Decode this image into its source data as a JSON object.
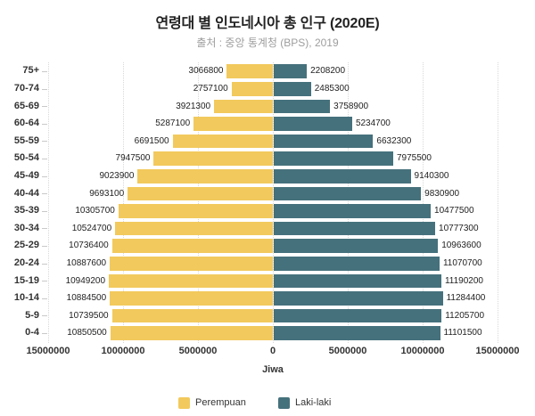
{
  "title": "연령대 별 인도네시아 총 인구 (2020E)",
  "subtitle": "출처 : 중앙 통계청 (BPS), 2019",
  "colors": {
    "perempuan": "#F2C95C",
    "laki_laki": "#45717C",
    "grid": "#d9d9d9",
    "text": "#333333"
  },
  "chart_data": {
    "type": "bar",
    "variant": "population-pyramid-horizontal",
    "title": "연령대 별 인도네시아 총 인구 (2020E)",
    "subtitle": "출처 : 중앙 통계청 (BPS), 2019",
    "xlabel": "Jiwa",
    "categories": [
      "75+",
      "70-74",
      "65-69",
      "60-64",
      "55-59",
      "50-54",
      "45-49",
      "40-44",
      "35-39",
      "30-34",
      "25-29",
      "20-24",
      "15-19",
      "10-14",
      "5-9",
      "0-4"
    ],
    "series": [
      {
        "name": "Perempuan",
        "side": "left",
        "color": "#F2C95C",
        "values": [
          3066800,
          2757100,
          3921300,
          5287100,
          6691500,
          7947500,
          9023900,
          9693100,
          10305700,
          10524700,
          10736400,
          10887600,
          10949200,
          10884500,
          10739500,
          10850500
        ]
      },
      {
        "name": "Laki-laki",
        "side": "right",
        "color": "#45717C",
        "values": [
          2208200,
          2485300,
          3758900,
          5234700,
          6632300,
          7975500,
          9140300,
          9830900,
          10477500,
          10777300,
          10963600,
          11070700,
          11190200,
          11284400,
          11205700,
          11101500
        ]
      }
    ],
    "x_tick_labels": [
      "15000000",
      "10000000",
      "5000000",
      "0",
      "5000000",
      "10000000",
      "15000000"
    ],
    "xlim_abs": 15000000,
    "grid": "dotted-vertical",
    "legend_position": "bottom",
    "value_labels": "outside-ends"
  }
}
